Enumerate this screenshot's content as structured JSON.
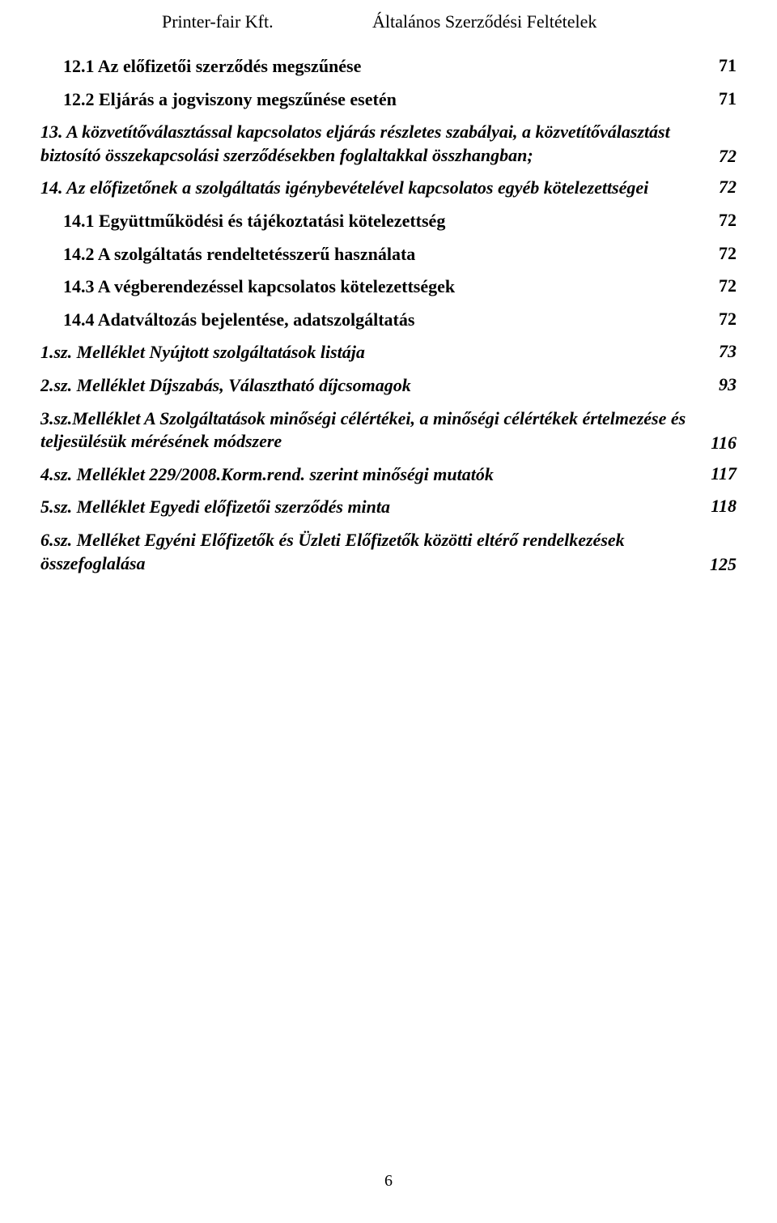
{
  "header": {
    "left": "Printer-fair Kft.",
    "right": "Általános Szerződési Feltételek"
  },
  "toc": [
    {
      "title": "12.1 Az előfizetői szerződés megszűnése",
      "page": "71",
      "bold": true,
      "italic": false,
      "indent": 1
    },
    {
      "title": "12.2 Eljárás a jogviszony megszűnése esetén",
      "page": "71",
      "bold": true,
      "italic": false,
      "indent": 1
    },
    {
      "title": "13. A közvetítőválasztással kapcsolatos eljárás részletes szabályai, a közvetítőválasztást biztosító összekapcsolási szerződésekben foglaltakkal összhangban;",
      "page": "72",
      "bold": true,
      "italic": true,
      "indent": 0,
      "multiline": true
    },
    {
      "title": "14. Az előfizetőnek a szolgáltatás igénybevételével kapcsolatos egyéb kötelezettségei",
      "page": "72",
      "bold": true,
      "italic": true,
      "indent": 0
    },
    {
      "title": "14.1 Együttműködési és tájékoztatási kötelezettség",
      "page": "72",
      "bold": true,
      "italic": false,
      "indent": 1
    },
    {
      "title": "14.2 A szolgáltatás rendeltetésszerű használata",
      "page": "72",
      "bold": true,
      "italic": false,
      "indent": 1
    },
    {
      "title": "14.3 A végberendezéssel kapcsolatos kötelezettségek",
      "page": "72",
      "bold": true,
      "italic": false,
      "indent": 1
    },
    {
      "title": "14.4 Adatváltozás bejelentése, adatszolgáltatás",
      "page": "72",
      "bold": true,
      "italic": false,
      "indent": 1
    },
    {
      "title": "1.sz. Melléklet Nyújtott szolgáltatások listája",
      "page": "73",
      "bold": true,
      "italic": true,
      "indent": 0
    },
    {
      "title": "2.sz. Melléklet  Díjszabás, Választható díjcsomagok",
      "page": "93",
      "bold": true,
      "italic": true,
      "indent": 0
    },
    {
      "title": "3.sz.Melléklet A Szolgáltatások minőségi célértékei, a minőségi célértékek értelmezése és teljesülésük mérésének módszere",
      "page": "116",
      "bold": true,
      "italic": true,
      "indent": 0,
      "multiline": true
    },
    {
      "title": "4.sz. Melléklet  229/2008.Korm.rend. szerint minőségi mutatók",
      "page": "117",
      "bold": true,
      "italic": true,
      "indent": 0
    },
    {
      "title": "5.sz. Melléklet  Egyedi előfizetői szerződés minta",
      "page": "118",
      "bold": true,
      "italic": true,
      "indent": 0
    },
    {
      "title": "6.sz. Melléket  Egyéni Előfizetők és Üzleti Előfizetők közötti eltérő rendelkezések összefoglalása",
      "page": "125",
      "bold": true,
      "italic": true,
      "indent": 0,
      "multiline": true
    }
  ],
  "pageNumber": "6"
}
